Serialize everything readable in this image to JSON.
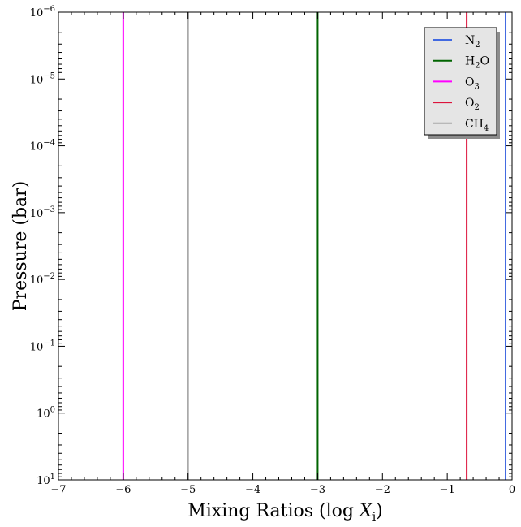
{
  "chart_data": {
    "type": "line",
    "xlabel_prefix": "Mixing Ratios (log ",
    "xlabel_var": "X",
    "xlabel_sub": "i",
    "xlabel_suffix": ")",
    "ylabel": "Pressure (bar)",
    "xlim": [
      -7,
      0
    ],
    "ylim": [
      10,
      1e-06
    ],
    "y_scale": "log",
    "y_inverted": true,
    "x_ticks": [
      -7,
      -6,
      -5,
      -4,
      -3,
      -2,
      -1,
      0
    ],
    "x_tick_labels": [
      "−7",
      "−6",
      "−5",
      "−4",
      "−3",
      "−2",
      "−1",
      "0"
    ],
    "y_ticks": [
      {
        "value": 1e-06,
        "base": "10",
        "exp": "−6"
      },
      {
        "value": 1e-05,
        "base": "10",
        "exp": "−5"
      },
      {
        "value": 0.0001,
        "base": "10",
        "exp": "−4"
      },
      {
        "value": 0.001,
        "base": "10",
        "exp": "−3"
      },
      {
        "value": 0.01,
        "base": "10",
        "exp": "−2"
      },
      {
        "value": 0.1,
        "base": "10",
        "exp": "−1"
      },
      {
        "value": 1,
        "base": "10",
        "exp": "0"
      },
      {
        "value": 10,
        "base": "10",
        "exp": "1"
      }
    ],
    "grid": false,
    "legend_position": "top-right",
    "series": [
      {
        "name_main": "N",
        "name_sub": "2",
        "name_tail": "",
        "color": "#4169e1",
        "x": -0.1,
        "y_range": [
          10,
          1e-06
        ]
      },
      {
        "name_main": "H",
        "name_sub": "2",
        "name_tail": "O",
        "color": "#006400",
        "x": -3.0,
        "y_range": [
          10,
          1e-06
        ]
      },
      {
        "name_main": "O",
        "name_sub": "3",
        "name_tail": "",
        "color": "#ff00ff",
        "x": -6.0,
        "y_range": [
          10,
          1e-06
        ]
      },
      {
        "name_main": "O",
        "name_sub": "2",
        "name_tail": "",
        "color": "#dc143c",
        "x": -0.7,
        "y_range": [
          10,
          1e-06
        ]
      },
      {
        "name_main": "CH",
        "name_sub": "4",
        "name_tail": "",
        "color": "#a9a9a9",
        "x": -5.0,
        "y_range": [
          10,
          1e-06
        ]
      }
    ]
  }
}
